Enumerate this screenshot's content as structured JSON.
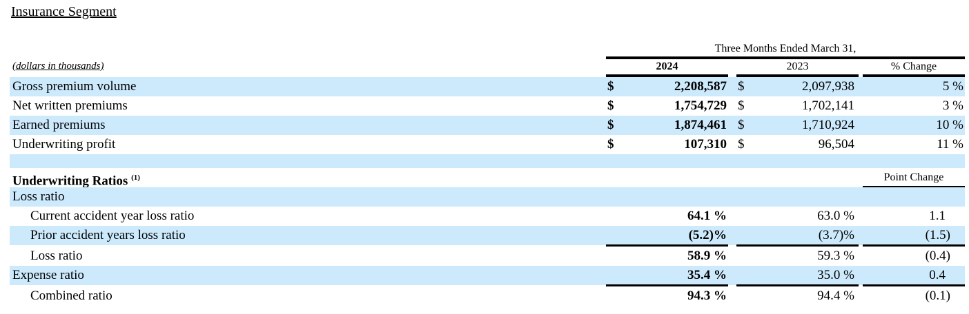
{
  "title": "Insurance Segment",
  "units": "(dollars in thousands)",
  "period_header": "Three Months Ended March 31,",
  "columns": [
    "2024",
    "2023",
    "% Change"
  ],
  "point_change_header": "Point Change",
  "currency_symbol": "$",
  "highlight_color": "#cdeafd",
  "financial_rows": [
    {
      "label": "Gross premium volume",
      "v2024": "2,208,587",
      "v2023": "2,097,938",
      "change": "5 %"
    },
    {
      "label": "Net written premiums",
      "v2024": "1,754,729",
      "v2023": "1,702,141",
      "change": "3 %"
    },
    {
      "label": "Earned premiums",
      "v2024": "1,874,461",
      "v2023": "1,710,924",
      "change": "10 %"
    },
    {
      "label": "Underwriting profit",
      "v2024": "107,310",
      "v2023": "96,504",
      "change": "11 %"
    }
  ],
  "ratios_header": "Underwriting Ratios",
  "ratios_footnote": "(1)",
  "loss_ratio_group": "Loss ratio",
  "ratio_rows": [
    {
      "label": "Current accident year loss ratio",
      "v2024": "64.1 %",
      "v2023": "63.0 %",
      "change": "1.1"
    },
    {
      "label": "Prior accident years loss ratio",
      "v2024": "(5.2)%",
      "v2023": "(3.7)%",
      "change": "(1.5)"
    },
    {
      "label": "Loss ratio",
      "v2024": "58.9 %",
      "v2023": "59.3 %",
      "change": "(0.4)"
    },
    {
      "label": "Expense ratio",
      "v2024": "35.4 %",
      "v2023": "35.0 %",
      "change": "0.4"
    },
    {
      "label": "Combined ratio",
      "v2024": "94.3 %",
      "v2023": "94.4 %",
      "change": "(0.1)"
    }
  ]
}
